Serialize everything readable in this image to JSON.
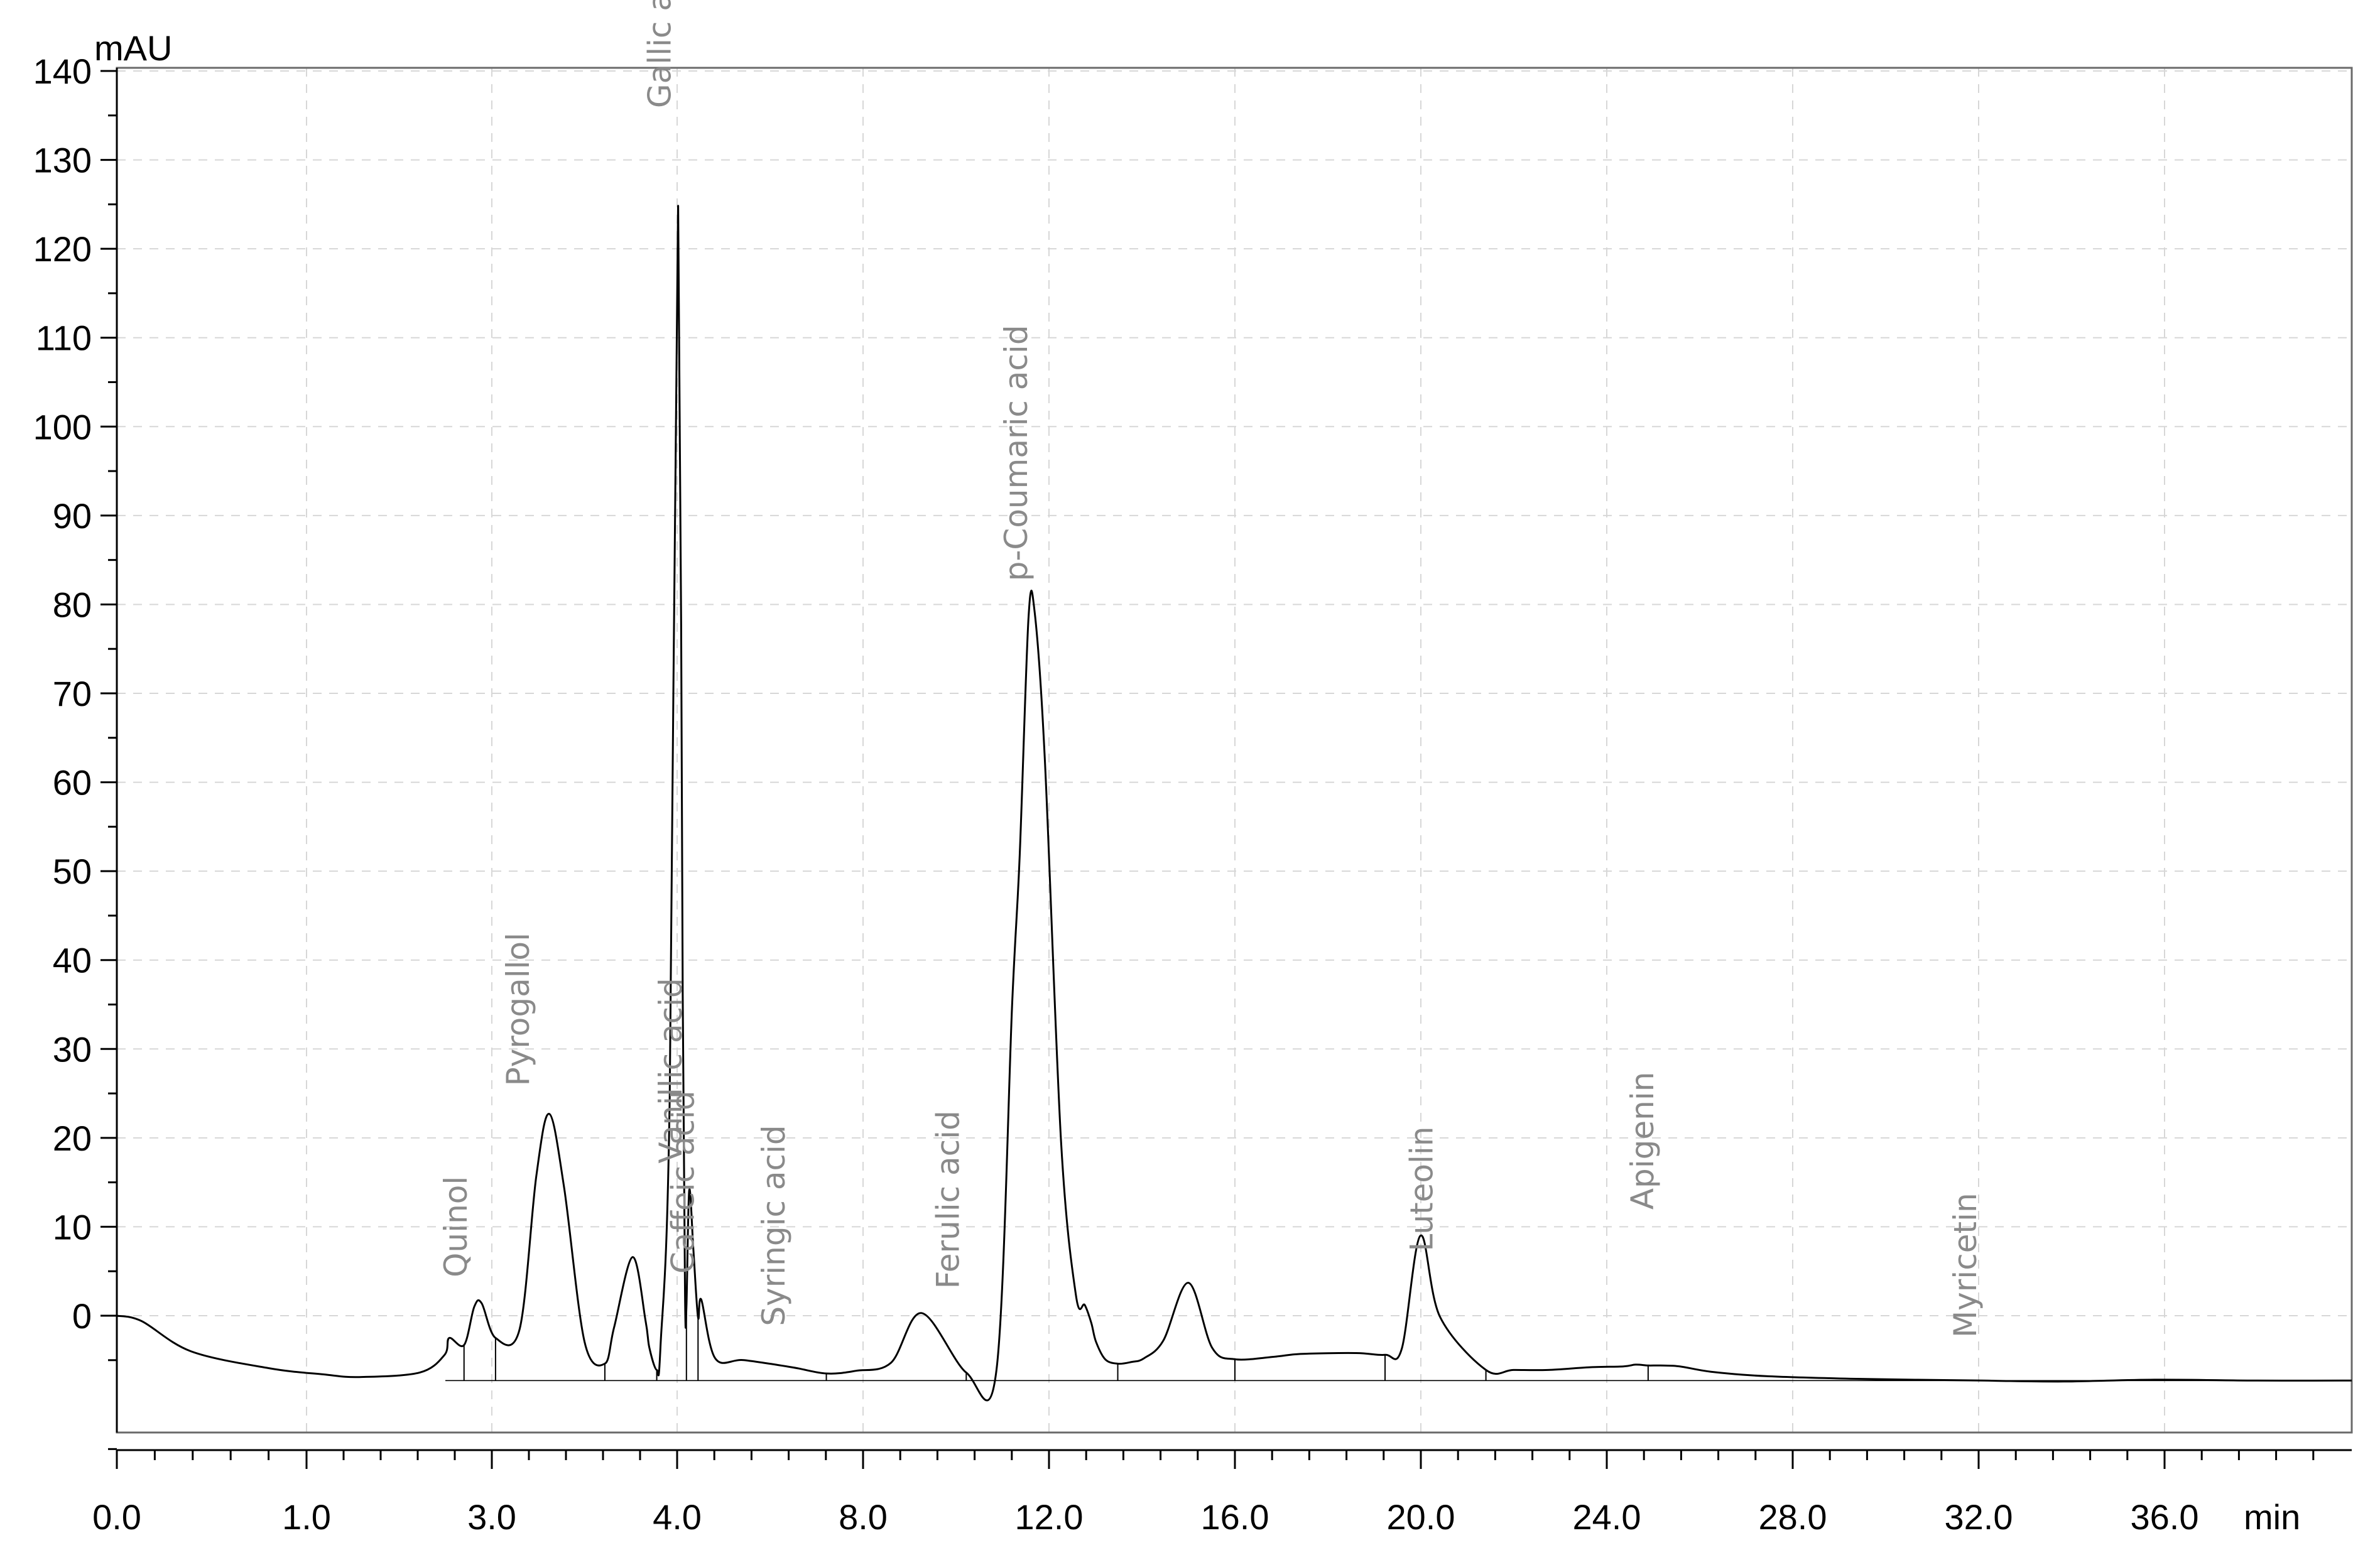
{
  "chart_data": {
    "type": "line",
    "title": "",
    "ylabel": "mAU",
    "xlabel": "min",
    "ylim": [
      -20,
      140
    ],
    "y_ticks": [
      0,
      10,
      20,
      30,
      40,
      50,
      60,
      70,
      80,
      90,
      100,
      110,
      120,
      130,
      140
    ],
    "x_tick_labels": [
      "0.0",
      "1.0",
      "3.0",
      "4.0",
      "8.0",
      "12.0",
      "16.0",
      "20.0",
      "24.0",
      "28.0",
      "32.0",
      "36.0"
    ],
    "x_tick_values": [
      0,
      1,
      3,
      4,
      8,
      12,
      16,
      20,
      24,
      28,
      32,
      36
    ],
    "grid": true,
    "series": [
      {
        "x": [
          0.0,
          0.13,
          0.39,
          0.8,
          1.18,
          1.57,
          2.22,
          2.49,
          2.54,
          2.7,
          2.81,
          2.89,
          3.02,
          3.15,
          3.24,
          3.31,
          3.39,
          3.5,
          3.61,
          3.66,
          3.76,
          3.83,
          3.85,
          3.89,
          3.91,
          3.96,
          4.02,
          4.12,
          4.17,
          4.2,
          4.26,
          4.35,
          4.45,
          4.52,
          4.82,
          5.44,
          6.47,
          7.21,
          7.84,
          8.6,
          9.26,
          10.22,
          10.87,
          11.21,
          11.37,
          11.56,
          11.69,
          11.91,
          12.26,
          12.58,
          12.77,
          12.91,
          13.01,
          13.21,
          13.48,
          13.78,
          14.04,
          14.46,
          15.0,
          15.51,
          16.0,
          16.88,
          17.41,
          18.6,
          19.23,
          19.59,
          19.99,
          20.41,
          21.4,
          21.99,
          22.74,
          23.63,
          24.36,
          24.62,
          24.89,
          25.16,
          25.57,
          26.24,
          27.43,
          29.37,
          32.11,
          33.83,
          35.81,
          38.0,
          39.82
        ],
        "y": [
          0.0,
          -0.6,
          -4.0,
          -5.9,
          -6.6,
          -6.9,
          -6.4,
          -4.4,
          -2.5,
          -3.3,
          1.0,
          1.4,
          -2.5,
          -1.5,
          15.7,
          22.7,
          14.4,
          -2.9,
          -5.4,
          -1.3,
          6.6,
          -0.6,
          -3.6,
          -6.1,
          -3.5,
          24.6,
          124.8,
          36.1,
          2.2,
          1.0,
          14.1,
          7.4,
          -0.2,
          1.8,
          -4.8,
          -5.0,
          -5.8,
          -6.5,
          -6.2,
          -5.3,
          0.3,
          -6.4,
          -6.1,
          35.3,
          51.8,
          78.5,
          79.2,
          62.7,
          19.6,
          2.3,
          1.2,
          -0.8,
          -2.9,
          -4.9,
          -5.4,
          -5.2,
          -4.8,
          -2.8,
          3.7,
          -3.6,
          -4.9,
          -4.6,
          -4.3,
          -4.2,
          -4.4,
          -3.7,
          9.0,
          -0.1,
          -6.1,
          -6.1,
          -6.1,
          -5.8,
          -5.7,
          -5.5,
          -5.6,
          -5.6,
          -5.7,
          -6.3,
          -6.8,
          -7.1,
          -7.3,
          -7.4,
          -7.2,
          -7.3,
          -7.3
        ]
      }
    ],
    "peaks": [
      {
        "label": "Quinol",
        "x": 2.81,
        "y": 1.5
      },
      {
        "label": "Pyrogallol",
        "x": 3.24,
        "y": 23.0
      },
      {
        "label": "Gallic acid",
        "x": 4.02,
        "y": 133.0
      },
      {
        "label": "Vanillic acid",
        "x": 4.26,
        "y": 14.3
      },
      {
        "label": "Caffeic acid",
        "x": 4.52,
        "y": 1.9
      },
      {
        "label": "Syringic acid",
        "x": 6.47,
        "y": -4.0
      },
      {
        "label": "Ferulic acid",
        "x": 10.22,
        "y": 0.2
      },
      {
        "label": "p-Coumaric acid",
        "x": 11.69,
        "y": 79.8
      },
      {
        "label": "Luteolin",
        "x": 20.41,
        "y": 4.4
      },
      {
        "label": "Apigenin",
        "x": 25.16,
        "y": 9.1
      },
      {
        "label": "Myricetin",
        "x": 32.11,
        "y": -5.3
      }
    ]
  }
}
